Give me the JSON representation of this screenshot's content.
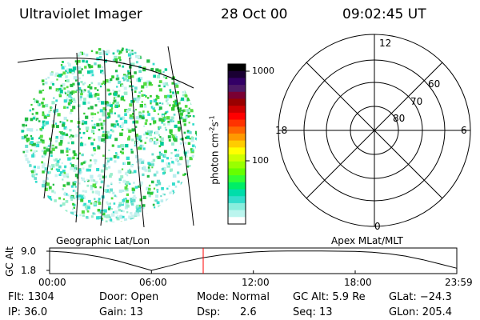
{
  "header": {
    "instrument": "Ultraviolet Imager",
    "date": "28 Oct 00",
    "time": "09:02:45 UT"
  },
  "map": {
    "label": "Geographic Lat/Lon"
  },
  "colorbar": {
    "unit_label": "photon cm",
    "unit_sup1": "-2",
    "unit_mid": "s",
    "unit_sup2": "-1",
    "ticks": [
      "1000",
      "100"
    ],
    "colors": [
      "#000000",
      "#1a0033",
      "#330066",
      "#4d1a66",
      "#7a0033",
      "#990000",
      "#cc0000",
      "#ff0000",
      "#ff3300",
      "#ff6600",
      "#ff9900",
      "#ffcc00",
      "#ffff00",
      "#ccff00",
      "#99ff00",
      "#66ff00",
      "#33ff33",
      "#00ee66",
      "#00ddaa",
      "#33ddcc",
      "#88eedd",
      "#bbf5ee",
      "#ffffff"
    ]
  },
  "polar": {
    "label": "Apex MLat/MLT",
    "mlt_labels": {
      "top": "12",
      "right": "6",
      "bottom": "0",
      "left": "18"
    },
    "lat_labels": [
      "60",
      "70",
      "80"
    ]
  },
  "altitude_panel": {
    "ylabel": "GC Alt",
    "yticks": [
      "9.0",
      "1.8"
    ],
    "xticks": [
      "00:00",
      "06:00",
      "12:00",
      "18:00",
      "23:59"
    ],
    "current_time_marker": "09:02:45"
  },
  "chart_data": {
    "type": "line",
    "title": "",
    "xlabel": "",
    "ylabel": "GC Alt",
    "x": [
      "00:00",
      "01:00",
      "02:00",
      "03:00",
      "04:00",
      "05:00",
      "06:00",
      "07:00",
      "08:00",
      "09:00",
      "10:00",
      "11:00",
      "12:00",
      "13:00",
      "14:00",
      "15:00",
      "16:00",
      "17:00",
      "18:00",
      "19:00",
      "20:00",
      "21:00",
      "22:00",
      "23:00",
      "23:59"
    ],
    "series": [
      {
        "values": [
          9.0,
          8.6,
          7.9,
          6.8,
          5.4,
          3.6,
          1.8,
          3.4,
          5.2,
          6.5,
          7.5,
          8.2,
          8.7,
          9.0,
          9.1,
          9.1,
          9.1,
          9.0,
          8.9,
          8.6,
          8.0,
          7.1,
          5.8,
          4.2,
          2.6
        ]
      }
    ],
    "ylim": [
      1.8,
      9.0
    ],
    "grid": false
  },
  "status": {
    "flt": "Flt: 1304",
    "ip": "IP: 36.0",
    "door": "Door: Open",
    "gain": "Gain: 13",
    "mode": "Mode: Normal",
    "dsp_label": "Dsp:",
    "dsp_value": "2.6",
    "gcalt": "GC Alt: 5.9 Re",
    "seq": "Seq: 13",
    "glat": "GLat: −24.3",
    "glon": "GLon: 205.4"
  }
}
